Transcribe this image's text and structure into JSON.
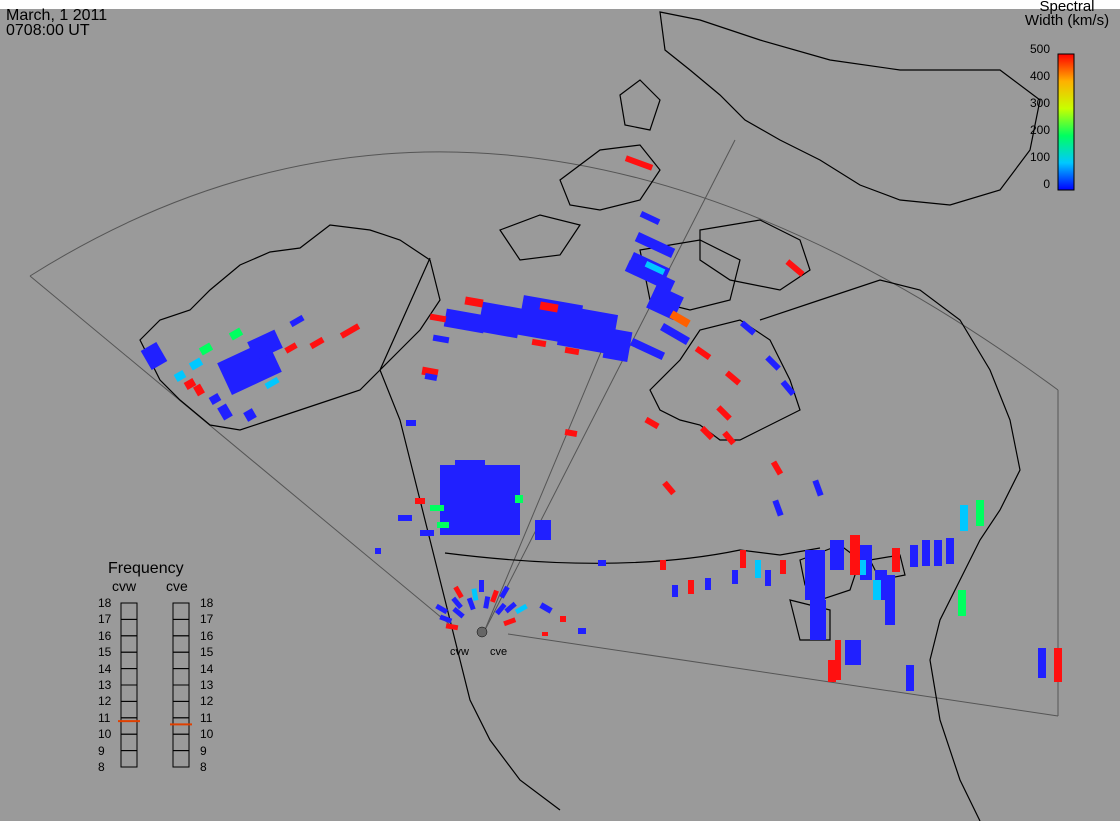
{
  "header": {
    "date": "March, 1 2011",
    "time": "0708:00 UT"
  },
  "colorbar": {
    "title_line1": "Spectral",
    "title_line2": "Width (km/s)",
    "ticks": [
      "500",
      "400",
      "300",
      "200",
      "100",
      "0"
    ],
    "min": 0,
    "max": 500,
    "colors": [
      "#0000ff",
      "#00c8ff",
      "#00ff60",
      "#c8ff00",
      "#ffb000",
      "#ff0000"
    ]
  },
  "frequency": {
    "title": "Frequency",
    "radars": [
      {
        "name": "cvw",
        "value_mhz": 10.8
      },
      {
        "name": "cve",
        "value_mhz": 10.6
      }
    ],
    "ticks": [
      "18",
      "17",
      "16",
      "15",
      "14",
      "13",
      "12",
      "11",
      "10",
      "9",
      "8"
    ]
  },
  "radar_sites": {
    "west": "cvw",
    "east": "cve"
  },
  "colors": {
    "background": "#9a9a9a",
    "coast": "#000000",
    "fov": "#555555",
    "freq_marker": "#e04000"
  }
}
